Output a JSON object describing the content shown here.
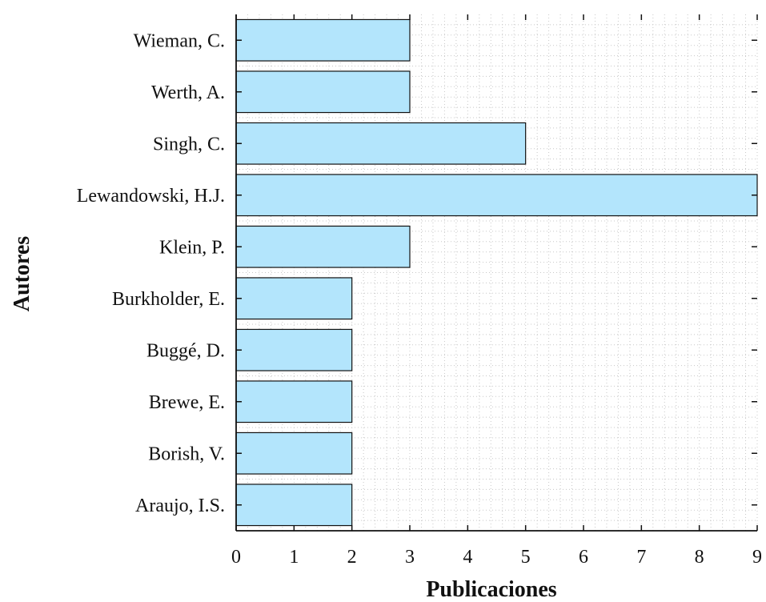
{
  "chart_data": {
    "type": "bar",
    "orientation": "horizontal",
    "title": "",
    "xlabel": "Publicaciones",
    "ylabel": "Autores",
    "categories": [
      "Araujo, I.S.",
      "Borish, V.",
      "Brewe, E.",
      "Buggé, D.",
      "Burkholder, E.",
      "Klein, P.",
      "Lewandowski, H.J.",
      "Singh, C.",
      "Werth, A.",
      "Wieman, C."
    ],
    "values": [
      2,
      2,
      2,
      2,
      2,
      3,
      9,
      5,
      3,
      3
    ],
    "xlim": [
      0,
      9
    ],
    "xticks": [
      0,
      1,
      2,
      3,
      4,
      5,
      6,
      7,
      8,
      9
    ],
    "grid": true,
    "minor_grid": true,
    "legend": "none",
    "colors": {
      "bar_fill": "#b3e5fc",
      "bar_stroke": "#111111",
      "axis": "#111111",
      "grid": "#c8c8c8"
    }
  }
}
